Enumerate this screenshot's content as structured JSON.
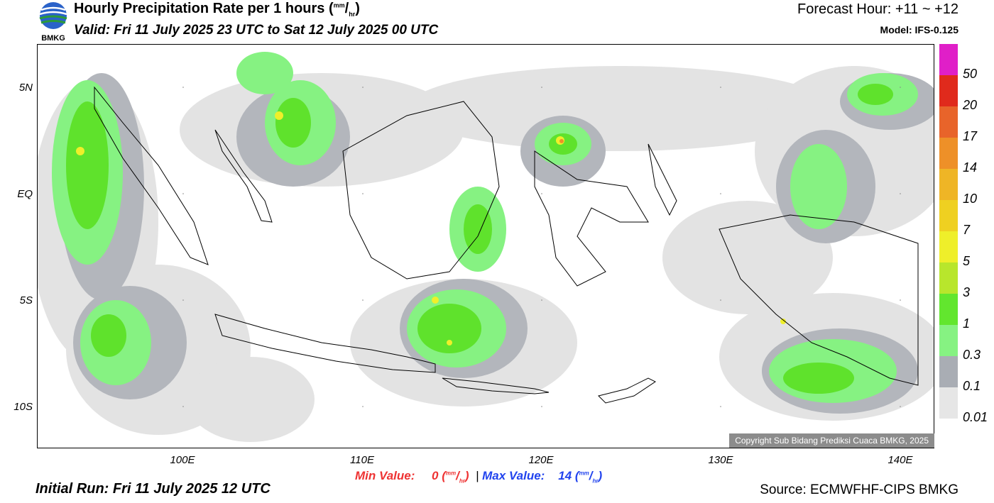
{
  "header": {
    "logo_text": "BMKG",
    "title_main": "Hourly Precipitation Rate per 1 hours (",
    "title_unit_num": "mm",
    "title_unit_sep": "/",
    "title_unit_den": "hr",
    "title_close": ")",
    "valid": "Valid: Fri 11 July 2025 23 UTC to Sat 12 July 2025 00 UTC",
    "forecast_hour": "Forecast Hour: +11 ~ +12",
    "model": "Model: IFS-0.125"
  },
  "map": {
    "lat_labels": [
      "5N",
      "EQ",
      "5S",
      "10S"
    ],
    "lon_labels": [
      "100E",
      "110E",
      "120E",
      "130E",
      "140E"
    ],
    "copyright": "Copyright Sub Bidang Prediksi Cuaca BMKG, 2025"
  },
  "stats": {
    "min_label": "Min Value:",
    "min_value": "0",
    "min_color": "#ee3333",
    "divider": "|",
    "max_label": "Max Value:",
    "max_value": "14",
    "max_color": "#2244ee",
    "unit_num": "mm",
    "unit_den": "hr"
  },
  "footer": {
    "initial_run": "Initial Run: Fri 11 July 2025 12 UTC",
    "source": "Source: ECMWFHF-CIPS BMKG"
  },
  "colorbar": {
    "labels": [
      "50",
      "20",
      "17",
      "14",
      "10",
      "7",
      "5",
      "3",
      "1",
      "0.3",
      "0.1",
      "0.01"
    ],
    "colors": [
      "#e01fc8",
      "#e02a1c",
      "#e8642a",
      "#ee9028",
      "#efb526",
      "#efd021",
      "#efef2a",
      "#b8e62c",
      "#62e62e",
      "#86f282",
      "#a9adb4",
      "#e6e6e6"
    ]
  }
}
